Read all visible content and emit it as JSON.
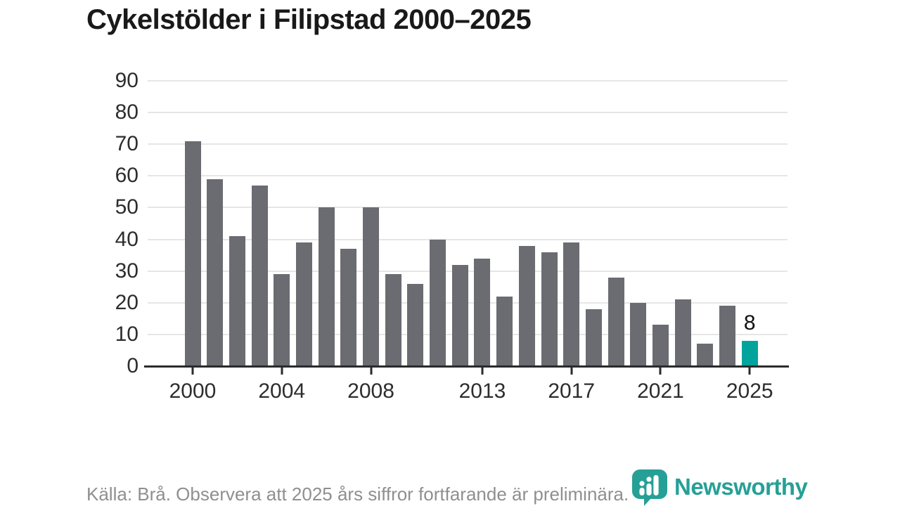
{
  "title": "Cykelstölder i Filipstad 2000–2025",
  "chart_data": {
    "type": "bar",
    "x": [
      2000,
      2001,
      2002,
      2003,
      2004,
      2005,
      2006,
      2007,
      2008,
      2009,
      2010,
      2011,
      2012,
      2013,
      2014,
      2015,
      2016,
      2017,
      2018,
      2019,
      2020,
      2021,
      2022,
      2023,
      2024,
      2025
    ],
    "values": [
      71,
      59,
      41,
      57,
      29,
      39,
      50,
      37,
      50,
      29,
      26,
      40,
      32,
      34,
      22,
      38,
      36,
      39,
      18,
      28,
      20,
      13,
      21,
      7,
      19,
      8
    ],
    "title": "Cykelstölder i Filipstad 2000–2025",
    "xlabel": "",
    "ylabel": "",
    "ylim": [
      0,
      90
    ],
    "yticks": [
      0,
      10,
      20,
      30,
      40,
      50,
      60,
      70,
      80,
      90
    ],
    "xticks": [
      2000,
      2004,
      2008,
      2013,
      2017,
      2021,
      2025
    ],
    "grid": true,
    "legend": "none",
    "highlight_year": 2025,
    "highlight_annotation": "8",
    "bar_color": "#6b6b72",
    "highlight_color": "#00a49c",
    "grid_color": "#e6e6e6",
    "axis_color": "#2b2b2b"
  },
  "footer": {
    "source_note": "Källa: Brå. Observera att 2025 års siffror fortfarande är preliminära."
  },
  "branding": {
    "logo_text": "Newsworthy",
    "logo_color": "#26a096",
    "logo_icon": "newsworthy-speech-bubble-chart-icon"
  }
}
